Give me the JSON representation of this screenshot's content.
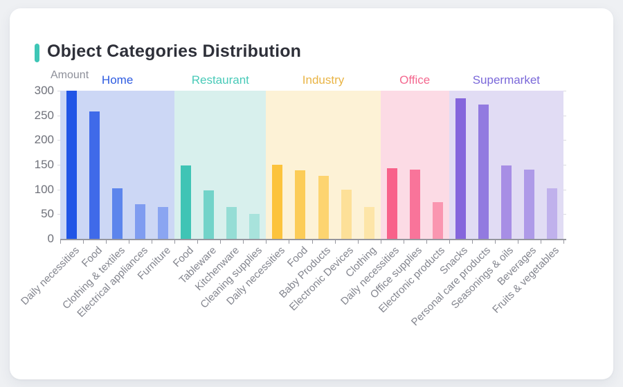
{
  "card": {
    "title": "Object Categories Distribution",
    "accent_color": "#3ec6b6"
  },
  "chart_data": {
    "type": "bar",
    "title": "Object Categories Distribution",
    "xlabel": "",
    "ylabel": "Amount",
    "ylim": [
      0,
      300
    ],
    "yticks": [
      0,
      50,
      100,
      150,
      200,
      250,
      300
    ],
    "grid": false,
    "legend_position": "top-band-labels",
    "groups": [
      {
        "name": "Home",
        "label_color": "#2d5be1",
        "band_color": "#ccd7f5",
        "bars": [
          {
            "label": "Daily necessities",
            "value": 300,
            "color": "#2155e6"
          },
          {
            "label": "Food",
            "value": 258,
            "color": "#3f6ae9"
          },
          {
            "label": "Clothing & textiles",
            "value": 103,
            "color": "#5c85ec"
          },
          {
            "label": "Electrical appliances",
            "value": 70,
            "color": "#7f9cf0"
          },
          {
            "label": "Furniture",
            "value": 65,
            "color": "#8aa5f1"
          }
        ]
      },
      {
        "name": "Restaurant",
        "label_color": "#48cab8",
        "band_color": "#d8f0ed",
        "bars": [
          {
            "label": "Food",
            "value": 148,
            "color": "#3fc4b5"
          },
          {
            "label": "Tableware",
            "value": 98,
            "color": "#72d3c9"
          },
          {
            "label": "Kitchenware",
            "value": 65,
            "color": "#95ddd5"
          },
          {
            "label": "Cleaning supplies",
            "value": 50,
            "color": "#a8e3dc"
          }
        ]
      },
      {
        "name": "Industry",
        "label_color": "#e9b445",
        "band_color": "#fdf2d6",
        "bars": [
          {
            "label": "Daily necessities",
            "value": 150,
            "color": "#fcc33c"
          },
          {
            "label": "Food",
            "value": 139,
            "color": "#fccc57"
          },
          {
            "label": "Baby Products",
            "value": 127,
            "color": "#fdd470"
          },
          {
            "label": "Electronic Devices",
            "value": 100,
            "color": "#fde098"
          },
          {
            "label": "Clothing",
            "value": 64,
            "color": "#fde5a8"
          }
        ]
      },
      {
        "name": "Office",
        "label_color": "#f4688f",
        "band_color": "#fcdbe5",
        "bars": [
          {
            "label": "Daily necessities",
            "value": 143,
            "color": "#f8618a"
          },
          {
            "label": "Office supplies",
            "value": 140,
            "color": "#f9749a"
          },
          {
            "label": "Electronic products",
            "value": 75,
            "color": "#fa96b0"
          }
        ]
      },
      {
        "name": "Supermarket",
        "label_color": "#7a68d9",
        "band_color": "#e1dcf4",
        "bars": [
          {
            "label": "Snacks",
            "value": 285,
            "color": "#8566dc"
          },
          {
            "label": "Personal care products",
            "value": 272,
            "color": "#927ae0"
          },
          {
            "label": "Seasonings & oils",
            "value": 148,
            "color": "#a78ee5"
          },
          {
            "label": "Beverages",
            "value": 140,
            "color": "#ae9ae8"
          },
          {
            "label": "Fruits & vegetables",
            "value": 102,
            "color": "#c0b1ec"
          }
        ]
      }
    ]
  }
}
